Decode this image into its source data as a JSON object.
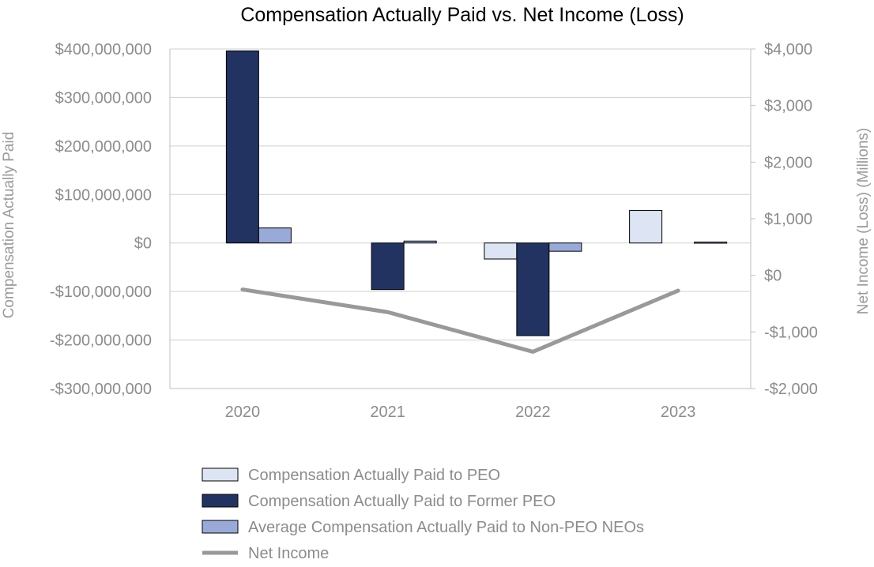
{
  "chart_data": {
    "type": "bar",
    "title": "Compensation Actually Paid vs. Net Income (Loss)",
    "categories": [
      "2020",
      "2021",
      "2022",
      "2023"
    ],
    "y_left": {
      "label": "Compensation Actually Paid",
      "ylim": [
        -300000000,
        400000000
      ],
      "ticks": [
        400000000,
        300000000,
        200000000,
        100000000,
        0,
        -100000000,
        -200000000,
        -300000000
      ],
      "tick_labels": [
        "$400,000,000",
        "$300,000,000",
        "$200,000,000",
        "$100,000,000",
        "$0",
        "-$100,000,000",
        "-$200,000,000",
        "-$300,000,000"
      ]
    },
    "y_right": {
      "label": "Net Income (Loss) (Millions)",
      "ylim": [
        -2000,
        4000
      ],
      "ticks": [
        4000,
        3000,
        2000,
        1000,
        0,
        -1000,
        -2000
      ],
      "tick_labels": [
        "$4,000",
        "$3,000",
        "$2,000",
        "$1,000",
        "$0",
        "-$1,000",
        "-$2,000"
      ]
    },
    "series": [
      {
        "name": "Compensation Actually Paid to PEO",
        "type": "bar",
        "axis": "left",
        "color": "#dde4f3",
        "values": [
          null,
          null,
          -33000000,
          67000000
        ]
      },
      {
        "name": "Compensation Actually Paid to Former PEO",
        "type": "bar",
        "axis": "left",
        "color": "#223361",
        "values": [
          396000000,
          -96000000,
          -191000000,
          null
        ]
      },
      {
        "name": "Average Compensation Actually Paid to Non-PEO NEOs",
        "type": "bar",
        "axis": "left",
        "color": "#9aaad8",
        "values": [
          31000000,
          4000000,
          -17000000,
          2000000
        ]
      },
      {
        "name": "Net Income",
        "type": "line",
        "axis": "right",
        "color": "#999999",
        "values": [
          -250,
          -650,
          -1350,
          -270
        ]
      }
    ],
    "legend_position": "bottom"
  }
}
